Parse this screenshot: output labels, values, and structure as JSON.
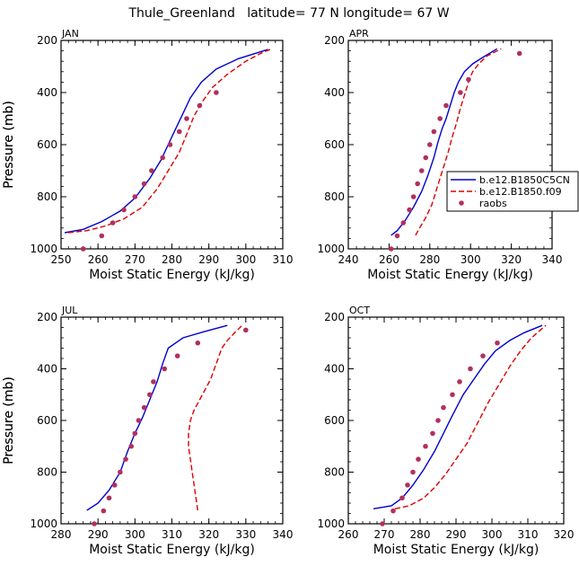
{
  "page": {
    "title": "Thule_Greenland   latitude= 77 N longitude= 67 W"
  },
  "legend": {
    "entries": [
      {
        "label": "b.e12.B1850C5CN",
        "color": "#0000cc",
        "style": "solid"
      },
      {
        "label": "b.e12.B1850.f09",
        "color": "#dd0000",
        "style": "dashed"
      },
      {
        "label": "raobs",
        "color": "#b03060",
        "style": "dot"
      }
    ]
  },
  "chart_data": [
    {
      "type": "line",
      "title": "JAN",
      "xlabel": "Moist Static Energy (kJ/kg)",
      "ylabel": "Pressure (mb)",
      "xlim": [
        250,
        310
      ],
      "xticks": [
        250,
        260,
        270,
        280,
        290,
        300,
        310
      ],
      "ylim": [
        1000,
        200
      ],
      "yticks": [
        200,
        400,
        600,
        800,
        1000
      ],
      "series": [
        {
          "name": "b.e12.B1850C5CN",
          "points": [
            [
              251,
              938
            ],
            [
              256,
              925
            ],
            [
              261,
              895
            ],
            [
              266,
              855
            ],
            [
              270,
              805
            ],
            [
              274,
              730
            ],
            [
              277,
              660
            ],
            [
              279,
              600
            ],
            [
              281,
              540
            ],
            [
              283,
              480
            ],
            [
              285,
              420
            ],
            [
              288,
              360
            ],
            [
              292,
              310
            ],
            [
              298,
              270
            ],
            [
              306,
              235
            ]
          ]
        },
        {
          "name": "b.e12.B1850.f09",
          "points": [
            [
              252,
              938
            ],
            [
              257,
              930
            ],
            [
              262,
              912
            ],
            [
              267,
              885
            ],
            [
              272,
              840
            ],
            [
              276,
              770
            ],
            [
              279,
              700
            ],
            [
              282,
              630
            ],
            [
              284,
              560
            ],
            [
              286,
              490
            ],
            [
              288,
              440
            ],
            [
              291,
              380
            ],
            [
              295,
              330
            ],
            [
              300,
              280
            ],
            [
              304,
              250
            ],
            [
              307,
              232
            ]
          ]
        },
        {
          "name": "raobs",
          "points": [
            [
              256,
              1000
            ],
            [
              261,
              950
            ],
            [
              264,
              900
            ],
            [
              267,
              850
            ],
            [
              270,
              800
            ],
            [
              272.5,
              750
            ],
            [
              274.5,
              700
            ],
            [
              277.5,
              650
            ],
            [
              279.5,
              600
            ],
            [
              282,
              550
            ],
            [
              284,
              500
            ],
            [
              287.5,
              450
            ],
            [
              292,
              400
            ]
          ]
        }
      ]
    },
    {
      "type": "line",
      "title": "APR",
      "xlabel": "Moist Static Energy (kJ/kg)",
      "ylabel": "Pressure (mb)",
      "xlim": [
        240,
        340
      ],
      "xticks": [
        240,
        260,
        280,
        300,
        320,
        340
      ],
      "ylim": [
        1000,
        200
      ],
      "yticks": [
        200,
        400,
        600,
        800,
        1000
      ],
      "series": [
        {
          "name": "b.e12.B1850C5CN",
          "points": [
            [
              261,
              948
            ],
            [
              264,
              930
            ],
            [
              268,
              890
            ],
            [
              272,
              840
            ],
            [
              276,
              780
            ],
            [
              279,
              720
            ],
            [
              282,
              650
            ],
            [
              284,
              590
            ],
            [
              286,
              540
            ],
            [
              288,
              500
            ],
            [
              290,
              450
            ],
            [
              292,
              400
            ],
            [
              294,
              360
            ],
            [
              297,
              320
            ],
            [
              301,
              290
            ],
            [
              306,
              265
            ],
            [
              313,
              232
            ]
          ]
        },
        {
          "name": "b.e12.B1850.f09",
          "points": [
            [
              273,
              948
            ],
            [
              275,
              920
            ],
            [
              278,
              880
            ],
            [
              281,
              830
            ],
            [
              283,
              780
            ],
            [
              285,
              730
            ],
            [
              287,
              680
            ],
            [
              289,
              630
            ],
            [
              291,
              570
            ],
            [
              293,
              520
            ],
            [
              295,
              460
            ],
            [
              297,
              410
            ],
            [
              299,
              360
            ],
            [
              301,
              320
            ],
            [
              304,
              290
            ],
            [
              308,
              260
            ],
            [
              315,
              232
            ]
          ]
        },
        {
          "name": "raobs",
          "points": [
            [
              261,
              1000
            ],
            [
              264,
              950
            ],
            [
              267,
              900
            ],
            [
              270,
              850
            ],
            [
              272,
              800
            ],
            [
              274,
              750
            ],
            [
              276,
              700
            ],
            [
              278,
              650
            ],
            [
              280,
              600
            ],
            [
              282,
              550
            ],
            [
              285,
              500
            ],
            [
              288,
              450
            ],
            [
              295,
              400
            ],
            [
              299,
              350
            ],
            [
              324,
              250
            ]
          ]
        }
      ]
    },
    {
      "type": "line",
      "title": "JUL",
      "xlabel": "Moist Static Energy (kJ/kg)",
      "ylabel": "Pressure (mb)",
      "xlim": [
        280,
        340
      ],
      "xticks": [
        280,
        290,
        300,
        310,
        320,
        330,
        340
      ],
      "ylim": [
        1000,
        200
      ],
      "yticks": [
        200,
        400,
        600,
        800,
        1000
      ],
      "series": [
        {
          "name": "b.e12.B1850C5CN",
          "points": [
            [
              287,
              948
            ],
            [
              290,
              920
            ],
            [
              293,
              870
            ],
            [
              296,
              800
            ],
            [
              298,
              720
            ],
            [
              300,
              650
            ],
            [
              302,
              590
            ],
            [
              304,
              520
            ],
            [
              306,
              450
            ],
            [
              307.5,
              380
            ],
            [
              309,
              320
            ],
            [
              313,
              280
            ],
            [
              319,
              255
            ],
            [
              325,
              232
            ]
          ]
        },
        {
          "name": "b.e12.B1850.f09",
          "points": [
            [
              317,
              948
            ],
            [
              316.5,
              900
            ],
            [
              316,
              850
            ],
            [
              315.5,
              800
            ],
            [
              315,
              750
            ],
            [
              314.5,
              700
            ],
            [
              314.5,
              650
            ],
            [
              315,
              600
            ],
            [
              316,
              560
            ],
            [
              317.5,
              520
            ],
            [
              319,
              480
            ],
            [
              320.5,
              440
            ],
            [
              321.5,
              400
            ],
            [
              322.5,
              360
            ],
            [
              323.5,
              320
            ],
            [
              325,
              290
            ],
            [
              327,
              260
            ],
            [
              329,
              232
            ]
          ]
        },
        {
          "name": "raobs",
          "points": [
            [
              289,
              1000
            ],
            [
              291.5,
              950
            ],
            [
              293,
              900
            ],
            [
              294.5,
              850
            ],
            [
              296,
              800
            ],
            [
              297.5,
              750
            ],
            [
              299,
              700
            ],
            [
              300,
              650
            ],
            [
              301,
              600
            ],
            [
              302.5,
              550
            ],
            [
              304,
              500
            ],
            [
              305,
              450
            ],
            [
              308,
              400
            ],
            [
              311.5,
              350
            ],
            [
              317,
              300
            ],
            [
              330,
              250
            ]
          ]
        }
      ]
    },
    {
      "type": "line",
      "title": "OCT",
      "xlabel": "Moist Static Energy (kJ/kg)",
      "ylabel": "Pressure (mb)",
      "xlim": [
        260,
        320
      ],
      "xticks": [
        260,
        270,
        280,
        290,
        300,
        310,
        320
      ],
      "ylim": [
        1000,
        200
      ],
      "yticks": [
        200,
        400,
        600,
        800,
        1000
      ],
      "series": [
        {
          "name": "b.e12.B1850C5CN",
          "points": [
            [
              267,
              942
            ],
            [
              272,
              930
            ],
            [
              275,
              900
            ],
            [
              278,
              850
            ],
            [
              281,
              790
            ],
            [
              284,
              720
            ],
            [
              286.5,
              650
            ],
            [
              289,
              580
            ],
            [
              292,
              500
            ],
            [
              295,
              440
            ],
            [
              298,
              380
            ],
            [
              301,
              330
            ],
            [
              305,
              290
            ],
            [
              309,
              260
            ],
            [
              314,
              232
            ]
          ]
        },
        {
          "name": "b.e12.B1850.f09",
          "points": [
            [
              273,
              942
            ],
            [
              277,
              930
            ],
            [
              281,
              900
            ],
            [
              284,
              860
            ],
            [
              287,
              810
            ],
            [
              290,
              750
            ],
            [
              293,
              690
            ],
            [
              296,
              610
            ],
            [
              299,
              530
            ],
            [
              302,
              460
            ],
            [
              305,
              390
            ],
            [
              308,
              330
            ],
            [
              311,
              280
            ],
            [
              315,
              232
            ]
          ]
        },
        {
          "name": "raobs",
          "points": [
            [
              269.5,
              1000
            ],
            [
              272.5,
              950
            ],
            [
              275,
              900
            ],
            [
              276.5,
              850
            ],
            [
              278,
              800
            ],
            [
              279.5,
              750
            ],
            [
              281.5,
              700
            ],
            [
              283.5,
              650
            ],
            [
              285,
              600
            ],
            [
              286.5,
              550
            ],
            [
              289,
              500
            ],
            [
              291,
              450
            ],
            [
              294,
              400
            ],
            [
              297.5,
              350
            ],
            [
              301.5,
              300
            ]
          ]
        }
      ]
    }
  ]
}
